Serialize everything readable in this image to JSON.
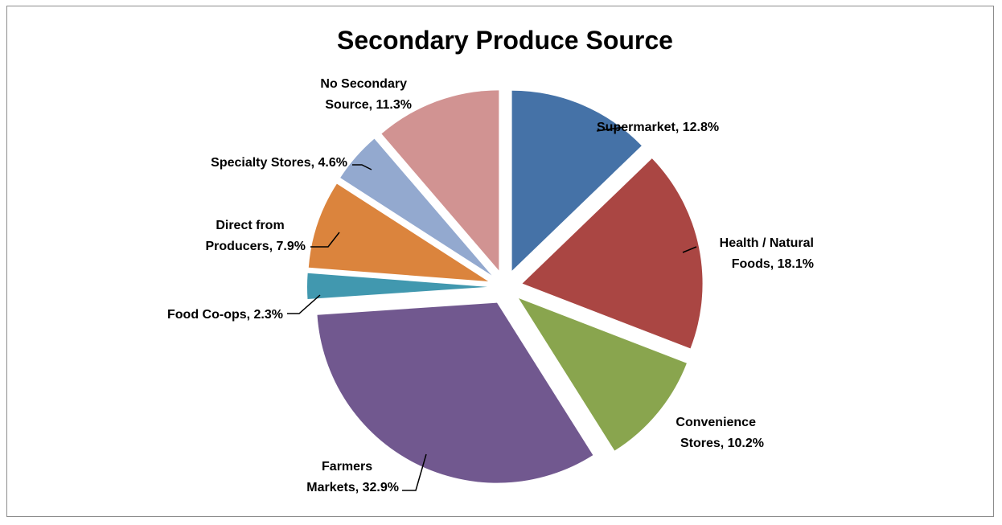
{
  "chart_data": {
    "type": "pie",
    "title": "Secondary Produce Source",
    "exploded": true,
    "start_angle_deg": 0,
    "direction": "clockwise",
    "slices": [
      {
        "name": "Supermarket",
        "value": 12.8,
        "label": "Supermarket, 12.8%",
        "color": "#4572a7"
      },
      {
        "name": "Health / Natural Foods",
        "value": 18.1,
        "label_lines": [
          "Health / Natural",
          "Foods, 18.1%"
        ],
        "color": "#aa4643"
      },
      {
        "name": "Convenience Stores",
        "value": 10.2,
        "label_lines": [
          "Convenience",
          "Stores, 10.2%"
        ],
        "color": "#89a54e"
      },
      {
        "name": "Farmers Markets",
        "value": 32.9,
        "label_lines": [
          "Farmers",
          "Markets, 32.9%"
        ],
        "color": "#71588f"
      },
      {
        "name": "Food Co-ops",
        "value": 2.3,
        "label": "Food Co-ops, 2.3%",
        "color": "#4198af"
      },
      {
        "name": "Direct from Producers",
        "value": 7.9,
        "label_lines": [
          "Direct from",
          "Producers, 7.9%"
        ],
        "color": "#db843d"
      },
      {
        "name": "Specialty Stores",
        "value": 4.6,
        "label": "Specialty Stores, 4.6%",
        "color": "#93a9cf"
      },
      {
        "name": "No Secondary Source",
        "value": 11.3,
        "label_lines": [
          "No Secondary",
          "Source, 11.3%"
        ],
        "color": "#d19392"
      }
    ]
  }
}
